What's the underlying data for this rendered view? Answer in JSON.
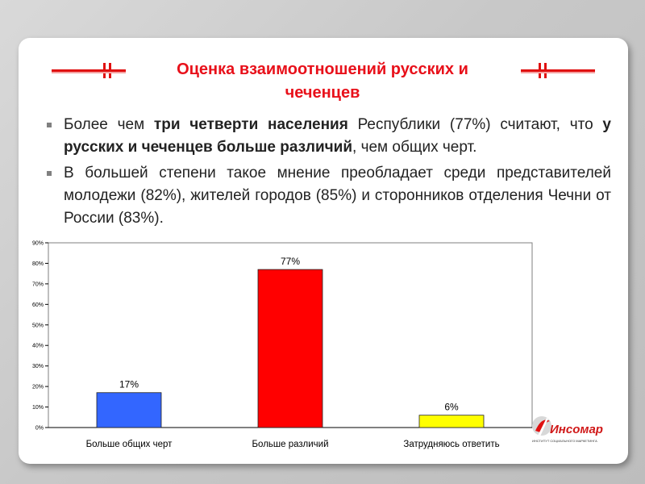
{
  "title": "Оценка взаимоотношений русских и чеченцев",
  "bullets": [
    {
      "parts": [
        {
          "text": "Более чем ",
          "bold": false
        },
        {
          "text": "три четверти населения",
          "bold": true
        },
        {
          "text": " Республики (77%) считают, что ",
          "bold": false
        },
        {
          "text": "у русских и чеченцев больше различий",
          "bold": true
        },
        {
          "text": ", чем общих черт.",
          "bold": false
        }
      ]
    },
    {
      "parts": [
        {
          "text": "В большей степени такое мнение преобладает среди представителей молодежи (82%), жителей городов (85%) и сторонников отделения Чечни от России (83%).",
          "bold": false
        }
      ]
    }
  ],
  "chart_data": {
    "type": "bar",
    "categories": [
      "Больше общих черт",
      "Больше различий",
      "Затрудняюсь ответить"
    ],
    "values": [
      17,
      77,
      6
    ],
    "data_labels": [
      "17%",
      "77%",
      "6%"
    ],
    "colors": [
      "#3366ff",
      "#ff0000",
      "#ffff00"
    ],
    "ylim": [
      0,
      90
    ],
    "yticks": [
      "0%",
      "10%",
      "20%",
      "30%",
      "40%",
      "50%",
      "60%",
      "70%",
      "80%",
      "90%"
    ],
    "title": "",
    "xlabel": "",
    "ylabel": "",
    "grid": false,
    "legend": "none"
  },
  "logo": {
    "name": "Инсомар",
    "tagline": "ИНСТИТУТ СОЦИАЛЬНОГО МАРКЕТИНГА"
  },
  "colors": {
    "title": "#e8101a",
    "accent": "#e01010"
  }
}
